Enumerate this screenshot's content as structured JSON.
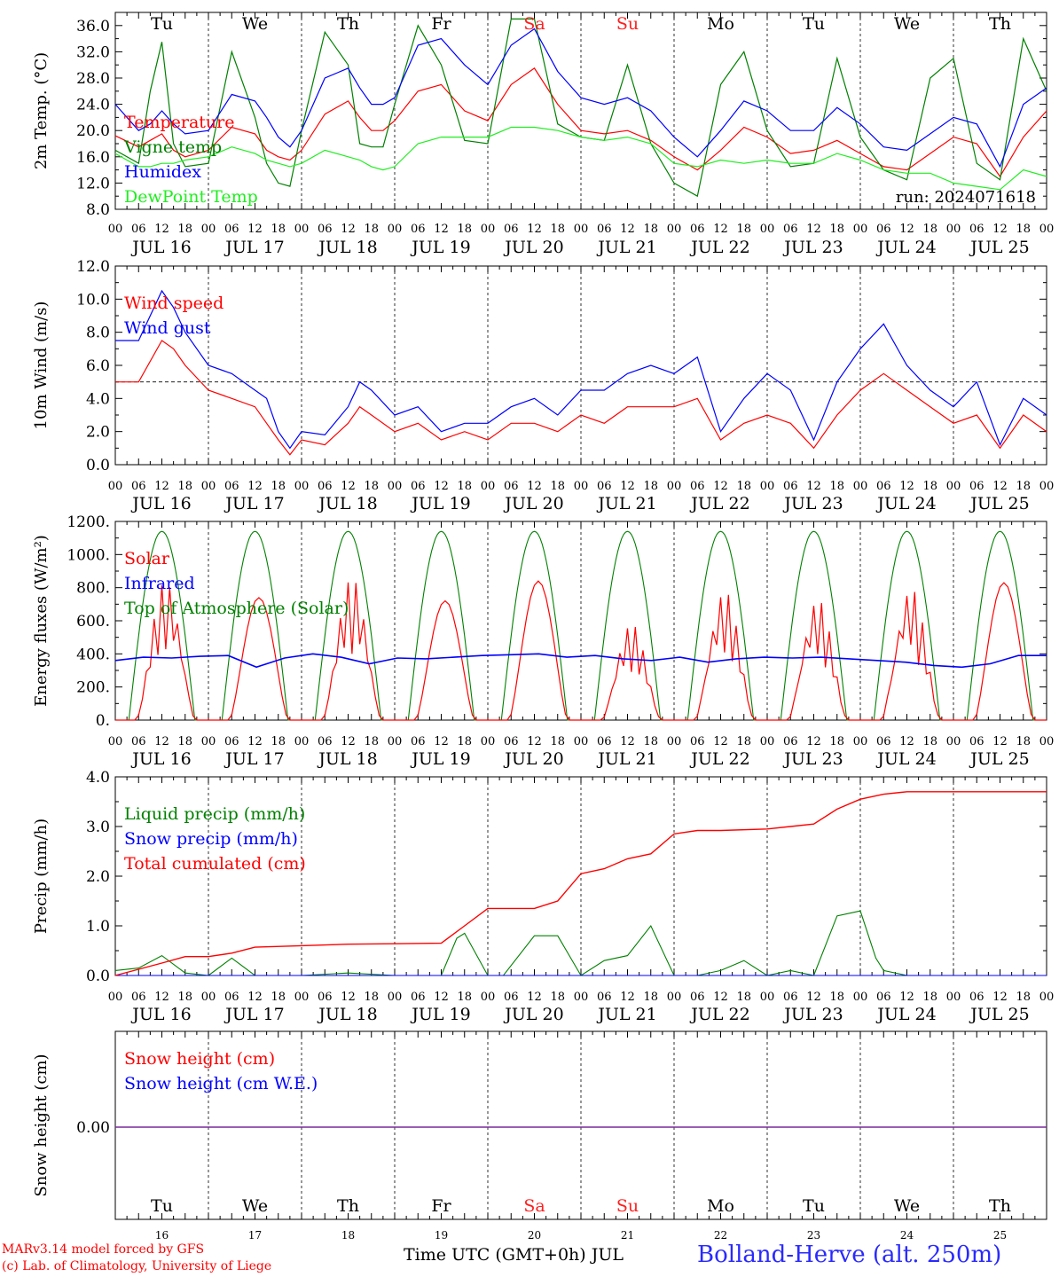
{
  "days": {
    "weekdays": [
      "Tu",
      "We",
      "Th",
      "Fr",
      "Sa",
      "Su",
      "Mo",
      "Tu",
      "We",
      "Th"
    ],
    "weekend_color": "#ff2020",
    "weekday_color": "#000000",
    "weekend_index": [
      4,
      5
    ],
    "dates": [
      "JUL 16",
      "JUL 17",
      "JUL 18",
      "JUL 19",
      "JUL 20",
      "JUL 21",
      "JUL 22",
      "JUL 23",
      "JUL 24",
      "JUL 25"
    ],
    "day_numbers": [
      "16",
      "17",
      "18",
      "19",
      "20",
      "21",
      "22",
      "23",
      "24",
      "25"
    ],
    "hour_ticks": [
      "00",
      "06",
      "12",
      "18"
    ],
    "last_tick": "00"
  },
  "chart_data": [
    {
      "type": "line",
      "id": "temp",
      "ylabel": "2m Temp. (°C)",
      "ylim": [
        8.0,
        38.0
      ],
      "yticks": [
        "8.0",
        "12.0",
        "16.0",
        "20.0",
        "24.0",
        "28.0",
        "32.0",
        "36.0"
      ],
      "ytick_values": [
        8,
        12,
        16,
        20,
        24,
        28,
        32,
        36
      ],
      "run_label": "run: 2024071618",
      "x_hours": [
        0,
        6,
        9,
        12,
        15,
        18,
        24,
        30,
        36,
        39,
        42,
        45,
        48,
        54,
        60,
        63,
        66,
        69,
        72,
        78,
        84,
        90,
        96,
        102,
        108,
        114,
        120,
        126,
        132,
        138,
        144,
        150,
        156,
        162,
        168,
        174,
        180,
        186,
        192,
        198,
        204,
        210,
        216,
        222,
        228,
        234,
        240
      ],
      "series": [
        {
          "name": "Temperature",
          "color": "#ff0000",
          "values": [
            19.2,
            17.5,
            18.5,
            19.5,
            17.0,
            16.0,
            17.0,
            20.5,
            19.5,
            17.0,
            16.0,
            15.5,
            17.0,
            22.5,
            24.5,
            22.0,
            20.0,
            20.0,
            21.5,
            26.0,
            27.0,
            23.0,
            21.5,
            27.0,
            29.5,
            24.0,
            20.0,
            19.5,
            20.0,
            18.5,
            16.0,
            14.0,
            17.0,
            20.5,
            19.0,
            16.5,
            17.0,
            18.5,
            16.5,
            14.5,
            14.0,
            16.5,
            19.0,
            18.0,
            13.0,
            19.0,
            23.0
          ]
        },
        {
          "name": "Vigne temp",
          "color": "#008000",
          "values": [
            17.0,
            15.0,
            26.0,
            33.5,
            18.0,
            14.5,
            15.0,
            32.0,
            22.0,
            15.0,
            12.0,
            11.5,
            20.0,
            35.0,
            30.0,
            18.0,
            17.5,
            17.5,
            24.0,
            36.0,
            30.0,
            18.5,
            18.0,
            37.0,
            37.0,
            21.0,
            19.0,
            18.5,
            30.0,
            18.0,
            12.0,
            10.0,
            27.0,
            32.0,
            20.0,
            14.5,
            15.0,
            31.0,
            19.0,
            14.0,
            12.5,
            28.0,
            31.0,
            15.0,
            12.5,
            34.0,
            26.0
          ]
        },
        {
          "name": "Humidex",
          "color": "#0000ff",
          "values": [
            24.0,
            20.0,
            21.0,
            23.0,
            21.0,
            19.5,
            20.0,
            25.5,
            24.5,
            22.0,
            19.0,
            17.5,
            20.0,
            28.0,
            29.5,
            26.5,
            24.0,
            24.0,
            25.0,
            33.0,
            34.0,
            30.0,
            27.0,
            33.0,
            35.5,
            29.0,
            25.0,
            24.0,
            25.0,
            23.0,
            19.0,
            16.0,
            20.0,
            24.5,
            23.0,
            20.0,
            20.0,
            23.5,
            21.0,
            17.5,
            17.0,
            19.5,
            22.0,
            21.0,
            14.5,
            24.0,
            26.5
          ]
        },
        {
          "name": "DewPoint Temp",
          "color": "#20ee20",
          "values": [
            16.5,
            14.5,
            14.5,
            15.0,
            15.0,
            15.5,
            16.0,
            17.5,
            16.5,
            15.5,
            15.0,
            14.5,
            15.0,
            17.0,
            16.0,
            15.5,
            14.5,
            14.0,
            14.5,
            18.0,
            19.0,
            19.0,
            19.0,
            20.5,
            20.5,
            20.0,
            19.0,
            18.5,
            19.0,
            18.0,
            15.0,
            14.5,
            15.5,
            15.0,
            15.5,
            15.0,
            15.0,
            16.5,
            15.5,
            14.0,
            13.5,
            13.5,
            12.0,
            11.5,
            11.0,
            14.0,
            13.0
          ]
        }
      ]
    },
    {
      "type": "line",
      "id": "wind",
      "ylabel": "10m Wind (m/s)",
      "ylim": [
        0.0,
        12.0
      ],
      "yticks": [
        "0.0",
        "2.0",
        "4.0",
        "6.0",
        "8.0",
        "10.0",
        "12.0"
      ],
      "ytick_values": [
        0,
        2,
        4,
        6,
        8,
        10,
        12
      ],
      "reference_line": 5.0,
      "x_hours": [
        0,
        6,
        12,
        15,
        18,
        24,
        30,
        36,
        39,
        42,
        45,
        48,
        54,
        60,
        63,
        66,
        72,
        78,
        84,
        90,
        96,
        102,
        108,
        114,
        120,
        126,
        132,
        138,
        144,
        150,
        156,
        162,
        168,
        174,
        180,
        186,
        192,
        198,
        204,
        210,
        216,
        222,
        228,
        234,
        240
      ],
      "series": [
        {
          "name": "Wind speed",
          "color": "#ff0000",
          "values": [
            5.0,
            5.0,
            7.5,
            7.0,
            6.0,
            4.5,
            4.0,
            3.5,
            2.5,
            1.5,
            0.6,
            1.5,
            1.2,
            2.5,
            3.5,
            3.0,
            2.0,
            2.5,
            1.5,
            2.0,
            1.5,
            2.5,
            2.5,
            2.0,
            3.0,
            2.5,
            3.5,
            3.5,
            3.5,
            4.0,
            1.5,
            2.5,
            3.0,
            2.5,
            1.0,
            3.0,
            4.5,
            5.5,
            4.5,
            3.5,
            2.5,
            3.0,
            1.0,
            3.0,
            2.0
          ]
        },
        {
          "name": "Wind gust",
          "color": "#0000ff",
          "values": [
            7.5,
            7.5,
            10.5,
            9.5,
            8.0,
            6.0,
            5.5,
            4.5,
            4.0,
            2.0,
            1.0,
            2.0,
            1.8,
            3.5,
            5.0,
            4.5,
            3.0,
            3.5,
            2.0,
            2.5,
            2.5,
            3.5,
            4.0,
            3.0,
            4.5,
            4.5,
            5.5,
            6.0,
            5.5,
            6.5,
            2.0,
            4.0,
            5.5,
            4.5,
            1.5,
            5.0,
            7.0,
            8.5,
            6.0,
            4.5,
            3.5,
            5.0,
            1.2,
            4.0,
            3.0
          ]
        }
      ]
    },
    {
      "type": "line",
      "id": "energy",
      "ylabel": "Energy fluxes (W/m²)",
      "ylim": [
        0,
        1200
      ],
      "yticks": [
        "0.",
        "200.",
        "400.",
        "600.",
        "800.",
        "1000.",
        "1200."
      ],
      "ytick_values": [
        0,
        200,
        400,
        600,
        800,
        1000,
        1200
      ],
      "toa_peak": 1140,
      "toa_half_width_hours": 8.5,
      "solar_peaks": [
        840,
        740,
        860,
        720,
        840,
        580,
        780,
        730,
        800,
        830
      ],
      "solar_peak_hour": 13,
      "solar_half_width_hours": 7.5,
      "infrared_values": [
        360,
        380,
        375,
        385,
        390,
        320,
        375,
        400,
        380,
        340,
        375,
        370,
        380,
        390,
        395,
        400,
        380,
        390,
        370,
        360,
        380,
        350,
        370,
        380,
        375,
        380,
        370,
        360,
        350,
        330,
        320,
        340,
        390,
        390
      ],
      "series": [
        {
          "name": "Solar",
          "color": "#ff0000"
        },
        {
          "name": "Infrared",
          "color": "#0000ff"
        },
        {
          "name": "Top of Atmosphere (Solar)",
          "color": "#008000"
        }
      ]
    },
    {
      "type": "line",
      "id": "precip",
      "ylabel": "Precip (mm/h)",
      "ylim": [
        0.0,
        4.0
      ],
      "yticks": [
        "0.0",
        "1.0",
        "2.0",
        "3.0",
        "4.0"
      ],
      "ytick_values": [
        0,
        1,
        2,
        3,
        4
      ],
      "cumul_x": [
        0,
        12,
        18,
        24,
        30,
        36,
        48,
        60,
        72,
        84,
        90,
        96,
        108,
        114,
        120,
        126,
        132,
        138,
        144,
        150,
        156,
        168,
        174,
        180,
        186,
        192,
        198,
        204,
        210,
        240
      ],
      "cumul_y": [
        0.0,
        0.25,
        0.38,
        0.38,
        0.45,
        0.57,
        0.6,
        0.63,
        0.64,
        0.65,
        1.0,
        1.35,
        1.35,
        1.5,
        2.05,
        2.15,
        2.35,
        2.45,
        2.85,
        2.92,
        2.92,
        2.95,
        3.0,
        3.05,
        3.35,
        3.55,
        3.65,
        3.7,
        3.7,
        3.7
      ],
      "liquid_x": [
        0,
        6,
        12,
        18,
        24,
        30,
        36,
        48,
        60,
        72,
        84,
        88,
        90,
        96,
        100,
        108,
        114,
        120,
        126,
        132,
        138,
        144,
        150,
        156,
        162,
        168,
        174,
        180,
        186,
        192,
        196,
        198,
        204,
        210,
        240
      ],
      "liquid_y": [
        0.1,
        0.15,
        0.4,
        0.05,
        0.0,
        0.35,
        0.0,
        0.0,
        0.05,
        0.0,
        0.0,
        0.75,
        0.85,
        0.0,
        0.0,
        0.8,
        0.8,
        0.0,
        0.3,
        0.4,
        1.0,
        0.0,
        0.0,
        0.1,
        0.3,
        0.0,
        0.1,
        0.0,
        1.2,
        1.3,
        0.35,
        0.1,
        0.0,
        0.0,
        0.0
      ],
      "series": [
        {
          "name": "Liquid precip (mm/h)",
          "color": "#008000"
        },
        {
          "name": "Snow precip (mm/h)",
          "color": "#0000ff"
        },
        {
          "name": "Total cumulated (cm)",
          "color": "#ff0000"
        }
      ]
    },
    {
      "type": "line",
      "id": "snow",
      "ylabel": "Snow height (cm)",
      "yticks": [
        "0.00"
      ],
      "ytick_values": [
        0
      ],
      "constant_value": 0.0,
      "series": [
        {
          "name": "Snow height (cm)",
          "color": "#ff0000"
        },
        {
          "name": "Snow height (cm W.E.)",
          "color": "#0000ff"
        }
      ]
    }
  ],
  "footer": {
    "model_line1": "MARv3.14 model forced by GFS",
    "model_line2": "(c) Lab. of Climatology, University of Liege",
    "xaxis_title": "Time UTC (GMT+0h) JUL",
    "station": "Bolland-Herve (alt. 250m)",
    "station_color": "#2a2aff",
    "credit_color": "#ff0000"
  }
}
